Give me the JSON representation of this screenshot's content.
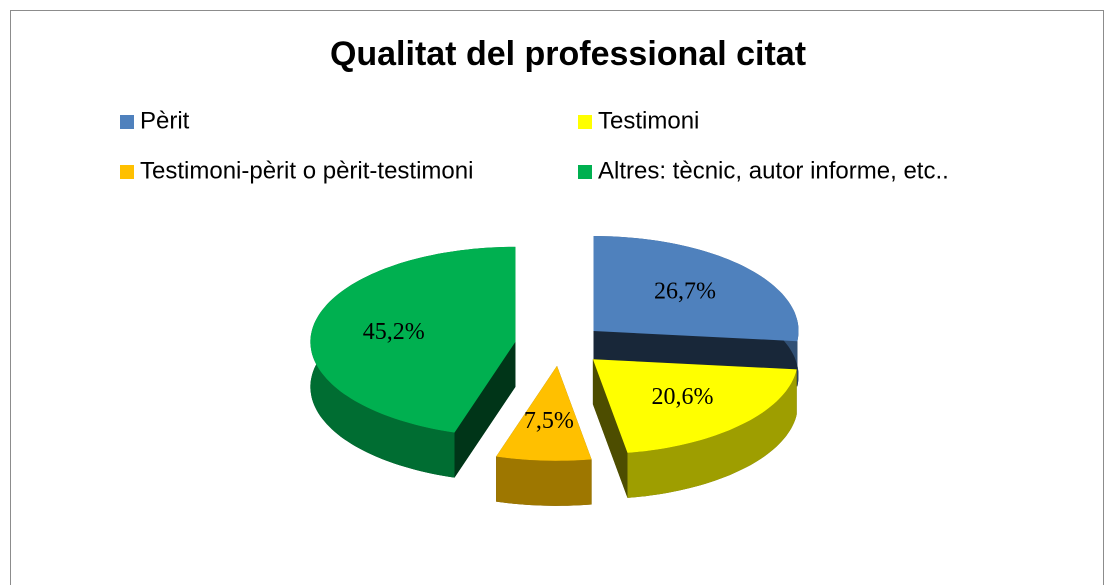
{
  "chart_data": {
    "type": "pie",
    "title": "Qualitat del professional citat",
    "categories": [
      "Pèrit",
      "Testimoni",
      "Testimoni-pèrit o pèrit-testimoni",
      "Altres: tècnic, autor informe, etc.."
    ],
    "values": [
      26.7,
      20.6,
      7.5,
      45.2
    ],
    "value_labels": [
      "26,7%",
      "20,6%",
      "7,5%",
      "45,2%"
    ],
    "colors": [
      "#4f81bd",
      "#ffff00",
      "#ffc000",
      "#00b050"
    ],
    "legend": "top"
  }
}
